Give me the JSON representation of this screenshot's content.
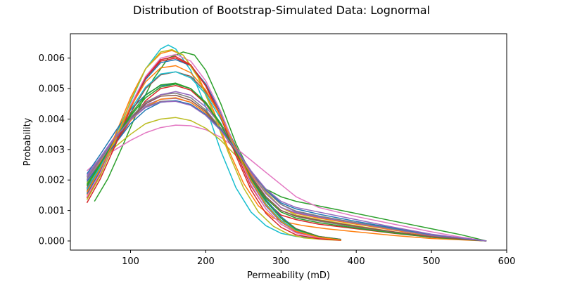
{
  "chart_data": {
    "type": "line",
    "title": "Distribution of Bootstrap-Simulated Data: Lognormal",
    "xlabel": "Permeability (mD)",
    "ylabel": "Probability",
    "xlim": [
      20,
      600
    ],
    "ylim": [
      -0.0003,
      0.0068
    ],
    "x_ticks": [
      100,
      200,
      300,
      400,
      500,
      600
    ],
    "y_ticks": [
      0.0,
      0.001,
      0.002,
      0.003,
      0.004,
      0.005,
      0.006
    ],
    "x_tick_labels": [
      "100",
      "200",
      "300",
      "400",
      "500",
      "600"
    ],
    "y_tick_labels": [
      "0.000",
      "0.001",
      "0.002",
      "0.003",
      "0.004",
      "0.005",
      "0.006"
    ],
    "grid": false,
    "legend": "none",
    "palette": [
      "#1f77b4",
      "#ff7f0e",
      "#2ca02c",
      "#d62728",
      "#9467bd",
      "#8c564b",
      "#e377c2",
      "#7f7f7f",
      "#bcbd22",
      "#17becf"
    ],
    "series": [
      {
        "color": "#17becf",
        "x": [
          42,
          60,
          80,
          100,
          120,
          140,
          150,
          160,
          180,
          200,
          220,
          240,
          260,
          280,
          300,
          320,
          350,
          380
        ],
        "y": [
          0.0016,
          0.00245,
          0.00345,
          0.00455,
          0.00565,
          0.0063,
          0.00643,
          0.0063,
          0.0056,
          0.0044,
          0.00295,
          0.00175,
          0.00095,
          0.0005,
          0.00025,
          0.00015,
          8e-05,
          3e-05
        ]
      },
      {
        "color": "#2ca02c",
        "x": [
          52,
          70,
          90,
          110,
          130,
          150,
          170,
          185,
          200,
          220,
          240,
          260,
          280,
          300,
          320,
          350,
          400,
          450,
          500,
          540,
          573
        ],
        "y": [
          0.0013,
          0.00205,
          0.00315,
          0.0043,
          0.0053,
          0.006,
          0.0062,
          0.0061,
          0.0056,
          0.0045,
          0.0032,
          0.0022,
          0.0017,
          0.00145,
          0.0013,
          0.00115,
          0.0009,
          0.00065,
          0.0004,
          0.0002,
          0.0
        ]
      },
      {
        "color": "#e377c2",
        "x": [
          42,
          60,
          80,
          100,
          120,
          140,
          160,
          180,
          200,
          220,
          240,
          260,
          280,
          300,
          320,
          350,
          400,
          450,
          500,
          540,
          573
        ],
        "y": [
          0.0023,
          0.0027,
          0.003,
          0.0033,
          0.00355,
          0.00372,
          0.0038,
          0.00378,
          0.00365,
          0.0034,
          0.00305,
          0.00265,
          0.00225,
          0.00185,
          0.00145,
          0.0011,
          0.0008,
          0.00055,
          0.0003,
          0.00012,
          0.0
        ]
      },
      {
        "color": "#bcbd22",
        "x": [
          42,
          60,
          80,
          100,
          120,
          140,
          160,
          180,
          200,
          220,
          240,
          260,
          280,
          300,
          320,
          350,
          400,
          450,
          500,
          573
        ],
        "y": [
          0.0019,
          0.00255,
          0.0031,
          0.0035,
          0.00385,
          0.004,
          0.00405,
          0.00395,
          0.0037,
          0.0033,
          0.0028,
          0.0022,
          0.0016,
          0.0011,
          0.00085,
          0.0007,
          0.0005,
          0.0003,
          0.00015,
          0.0
        ]
      },
      {
        "color": "#d62728",
        "x": [
          42,
          60,
          80,
          100,
          120,
          140,
          160,
          180,
          200,
          220,
          240,
          260,
          280,
          300,
          320,
          350,
          400,
          450,
          500,
          573
        ],
        "y": [
          0.00175,
          0.0024,
          0.0032,
          0.00395,
          0.0046,
          0.005,
          0.0051,
          0.00495,
          0.0045,
          0.0038,
          0.0029,
          0.002,
          0.0013,
          0.00085,
          0.0007,
          0.00055,
          0.0004,
          0.00025,
          0.00012,
          0.0
        ]
      },
      {
        "color": "#9467bd",
        "x": [
          42,
          60,
          80,
          100,
          120,
          140,
          160,
          180,
          200,
          220,
          240,
          260,
          280,
          300,
          320,
          350,
          400,
          450,
          500,
          573
        ],
        "y": [
          0.0021,
          0.00275,
          0.00345,
          0.00405,
          0.00445,
          0.00465,
          0.00468,
          0.00455,
          0.0042,
          0.0037,
          0.00305,
          0.0023,
          0.00165,
          0.0012,
          0.00095,
          0.0008,
          0.0006,
          0.0004,
          0.0002,
          0.0
        ]
      },
      {
        "color": "#ff7f0e",
        "x": [
          42,
          60,
          80,
          100,
          120,
          140,
          155,
          170,
          190,
          210,
          230,
          250,
          270,
          290,
          310,
          330,
          360,
          400,
          450,
          500,
          573
        ],
        "y": [
          0.0015,
          0.00235,
          0.0035,
          0.0047,
          0.00565,
          0.00615,
          0.00625,
          0.0061,
          0.0054,
          0.0043,
          0.003,
          0.0019,
          0.00115,
          0.00075,
          0.0006,
          0.0005,
          0.0004,
          0.0003,
          0.00018,
          8e-05,
          0.0
        ]
      },
      {
        "color": "#1f77b4",
        "x": [
          42,
          60,
          80,
          100,
          120,
          140,
          160,
          180,
          200,
          220,
          240,
          260,
          280,
          300,
          320,
          350,
          380
        ],
        "y": [
          0.0022,
          0.00285,
          0.0036,
          0.0043,
          0.0048,
          0.0051,
          0.00515,
          0.005,
          0.00455,
          0.00385,
          0.003,
          0.0021,
          0.00135,
          0.0008,
          0.0004,
          0.00015,
          5e-05
        ]
      },
      {
        "color": "#7f7f7f",
        "x": [
          42,
          60,
          80,
          100,
          120,
          140,
          160,
          180,
          200,
          220,
          240,
          260,
          280,
          300,
          320,
          350,
          400,
          450,
          500,
          573
        ],
        "y": [
          0.00185,
          0.00255,
          0.00335,
          0.00405,
          0.00455,
          0.0048,
          0.00485,
          0.0047,
          0.0043,
          0.0037,
          0.00295,
          0.00215,
          0.00145,
          0.001,
          0.0008,
          0.00065,
          0.00045,
          0.00028,
          0.00013,
          0.0
        ]
      },
      {
        "color": "#8c564b",
        "x": [
          42,
          60,
          80,
          100,
          120,
          140,
          160,
          180,
          200,
          220,
          240,
          260,
          280,
          300,
          320,
          350,
          380
        ],
        "y": [
          0.00165,
          0.0024,
          0.0033,
          0.0042,
          0.005,
          0.00545,
          0.00555,
          0.0054,
          0.0049,
          0.0041,
          0.0031,
          0.0021,
          0.0013,
          0.00075,
          0.0004,
          0.00015,
          5e-05
        ]
      },
      {
        "color": "#1f77b4",
        "x": [
          42,
          60,
          80,
          100,
          120,
          140,
          160,
          180,
          200,
          220,
          240,
          260,
          280,
          300,
          320,
          350,
          380
        ],
        "y": [
          0.00155,
          0.0023,
          0.0033,
          0.0044,
          0.0053,
          0.00585,
          0.00595,
          0.00575,
          0.00515,
          0.0042,
          0.00305,
          0.00195,
          0.00115,
          0.00062,
          0.00032,
          0.00012,
          4e-05
        ]
      },
      {
        "color": "#ff7f0e",
        "x": [
          42,
          60,
          80,
          100,
          120,
          140,
          160,
          180,
          200,
          220,
          240,
          260,
          280,
          300,
          320,
          350,
          400,
          450,
          500,
          573
        ],
        "y": [
          0.00195,
          0.0026,
          0.0033,
          0.00395,
          0.0044,
          0.00465,
          0.0047,
          0.00455,
          0.0042,
          0.00365,
          0.00295,
          0.0022,
          0.00155,
          0.0011,
          0.0009,
          0.00075,
          0.00055,
          0.00035,
          0.00017,
          0.0
        ]
      },
      {
        "color": "#2ca02c",
        "x": [
          42,
          60,
          80,
          100,
          120,
          140,
          160,
          180,
          200,
          220,
          240,
          260,
          280,
          300,
          320,
          350,
          400,
          450,
          500,
          573
        ],
        "y": [
          0.0018,
          0.0025,
          0.0033,
          0.0041,
          0.0047,
          0.00505,
          0.00515,
          0.005,
          0.00455,
          0.00385,
          0.003,
          0.0021,
          0.0014,
          0.00095,
          0.00075,
          0.0006,
          0.00042,
          0.00026,
          0.00012,
          0.0
        ]
      },
      {
        "color": "#d62728",
        "x": [
          42,
          60,
          80,
          100,
          120,
          140,
          160,
          180,
          200,
          220,
          240,
          260,
          280,
          300,
          320,
          350,
          380
        ],
        "y": [
          0.0014,
          0.0022,
          0.00325,
          0.0044,
          0.00535,
          0.0059,
          0.006,
          0.00575,
          0.0051,
          0.0041,
          0.0029,
          0.0018,
          0.00105,
          0.00055,
          0.00028,
          0.0001,
          3e-05
        ]
      },
      {
        "color": "#9467bd",
        "x": [
          42,
          60,
          80,
          100,
          120,
          140,
          160,
          180,
          200,
          220,
          240,
          260,
          280,
          300,
          320,
          350,
          400,
          450,
          500,
          573
        ],
        "y": [
          0.002,
          0.00265,
          0.00335,
          0.004,
          0.0045,
          0.0048,
          0.0049,
          0.00478,
          0.0044,
          0.0038,
          0.00305,
          0.00225,
          0.00155,
          0.0011,
          0.00092,
          0.00078,
          0.00058,
          0.00038,
          0.00018,
          0.0
        ]
      },
      {
        "color": "#8c564b",
        "x": [
          42,
          60,
          80,
          100,
          120,
          140,
          160,
          180,
          200,
          220,
          240,
          260,
          280,
          300,
          320,
          350,
          400,
          450,
          500,
          573
        ],
        "y": [
          0.0017,
          0.00245,
          0.00325,
          0.004,
          0.0045,
          0.00475,
          0.00478,
          0.00462,
          0.00425,
          0.00365,
          0.0029,
          0.0021,
          0.00145,
          0.001,
          0.00082,
          0.00068,
          0.00048,
          0.0003,
          0.00014,
          0.0
        ]
      },
      {
        "color": "#e377c2",
        "x": [
          42,
          60,
          80,
          100,
          120,
          140,
          160,
          180,
          200,
          220,
          240,
          260,
          280,
          300,
          320,
          350,
          380
        ],
        "y": [
          0.00145,
          0.00225,
          0.0033,
          0.00445,
          0.0054,
          0.006,
          0.00612,
          0.0059,
          0.00525,
          0.00425,
          0.003,
          0.00185,
          0.00105,
          0.00055,
          0.00026,
          0.0001,
          3e-05
        ]
      },
      {
        "color": "#7f7f7f",
        "x": [
          42,
          60,
          80,
          100,
          120,
          140,
          160,
          180,
          200,
          220,
          240,
          260,
          280,
          300,
          320,
          350,
          400,
          450,
          500,
          573
        ],
        "y": [
          0.00205,
          0.0027,
          0.0034,
          0.004,
          0.0044,
          0.00458,
          0.0046,
          0.00448,
          0.00415,
          0.00365,
          0.003,
          0.0023,
          0.00165,
          0.0012,
          0.00098,
          0.00082,
          0.0006,
          0.0004,
          0.0002,
          0.0
        ]
      },
      {
        "color": "#bcbd22",
        "x": [
          42,
          60,
          80,
          100,
          120,
          140,
          155,
          170,
          190,
          210,
          230,
          250,
          270,
          290,
          310,
          330,
          360,
          380
        ],
        "y": [
          0.00135,
          0.00215,
          0.0033,
          0.0046,
          0.00565,
          0.0062,
          0.00628,
          0.0061,
          0.00535,
          0.0042,
          0.0029,
          0.00175,
          0.00095,
          0.00048,
          0.00022,
          0.0001,
          4e-05,
          2e-05
        ]
      },
      {
        "color": "#17becf",
        "x": [
          42,
          60,
          80,
          100,
          120,
          140,
          160,
          180,
          200,
          220,
          240,
          260,
          280,
          300,
          320,
          350,
          380
        ],
        "y": [
          0.0017,
          0.00245,
          0.00335,
          0.0043,
          0.00505,
          0.00548,
          0.00555,
          0.00535,
          0.00482,
          0.004,
          0.003,
          0.002,
          0.00122,
          0.00068,
          0.00035,
          0.00013,
          4e-05
        ]
      },
      {
        "color": "#1f77b4",
        "x": [
          42,
          60,
          80,
          100,
          120,
          140,
          160,
          180,
          200,
          220,
          240,
          260,
          280,
          300,
          320,
          350,
          400,
          450,
          500,
          573
        ],
        "y": [
          0.00195,
          0.00255,
          0.0032,
          0.00385,
          0.0043,
          0.00455,
          0.0046,
          0.00448,
          0.00415,
          0.00365,
          0.003,
          0.0023,
          0.00168,
          0.00125,
          0.00105,
          0.00088,
          0.00064,
          0.00042,
          0.00021,
          0.0
        ]
      },
      {
        "color": "#d62728",
        "x": [
          42,
          60,
          80,
          100,
          120,
          140,
          160,
          180,
          200,
          220,
          240,
          260,
          280,
          300,
          320,
          350,
          380
        ],
        "y": [
          0.00125,
          0.00205,
          0.00315,
          0.00435,
          0.00535,
          0.00595,
          0.00605,
          0.00578,
          0.00508,
          0.00405,
          0.0028,
          0.00168,
          0.0009,
          0.00045,
          0.0002,
          7e-05,
          2e-05
        ]
      },
      {
        "color": "#2ca02c",
        "x": [
          42,
          60,
          80,
          100,
          120,
          140,
          160,
          180,
          200,
          220,
          240,
          260,
          280,
          300,
          320,
          350,
          380
        ],
        "y": [
          0.00185,
          0.00255,
          0.00335,
          0.00415,
          0.00478,
          0.00512,
          0.00518,
          0.005,
          0.00452,
          0.0038,
          0.00292,
          0.00205,
          0.0013,
          0.00075,
          0.00038,
          0.00014,
          4e-05
        ]
      },
      {
        "color": "#ff7f0e",
        "x": [
          42,
          60,
          80,
          100,
          120,
          140,
          160,
          180,
          200,
          220,
          240,
          260,
          280,
          300,
          320,
          350,
          380
        ],
        "y": [
          0.0016,
          0.00238,
          0.00335,
          0.0044,
          0.00522,
          0.00568,
          0.00575,
          0.00552,
          0.00495,
          0.00408,
          0.00302,
          0.00198,
          0.00118,
          0.00064,
          0.00032,
          0.00012,
          3e-05
        ]
      },
      {
        "color": "#9467bd",
        "x": [
          42,
          60,
          80,
          100,
          120,
          140,
          160,
          180,
          200,
          220,
          240,
          260,
          280,
          300,
          320,
          350,
          400,
          450,
          500,
          573
        ],
        "y": [
          0.00215,
          0.00275,
          0.0034,
          0.00398,
          0.00438,
          0.00456,
          0.00458,
          0.00445,
          0.00412,
          0.00362,
          0.00298,
          0.0023,
          0.0017,
          0.0013,
          0.0011,
          0.00095,
          0.0007,
          0.00045,
          0.00022,
          0.0
        ]
      }
    ]
  }
}
